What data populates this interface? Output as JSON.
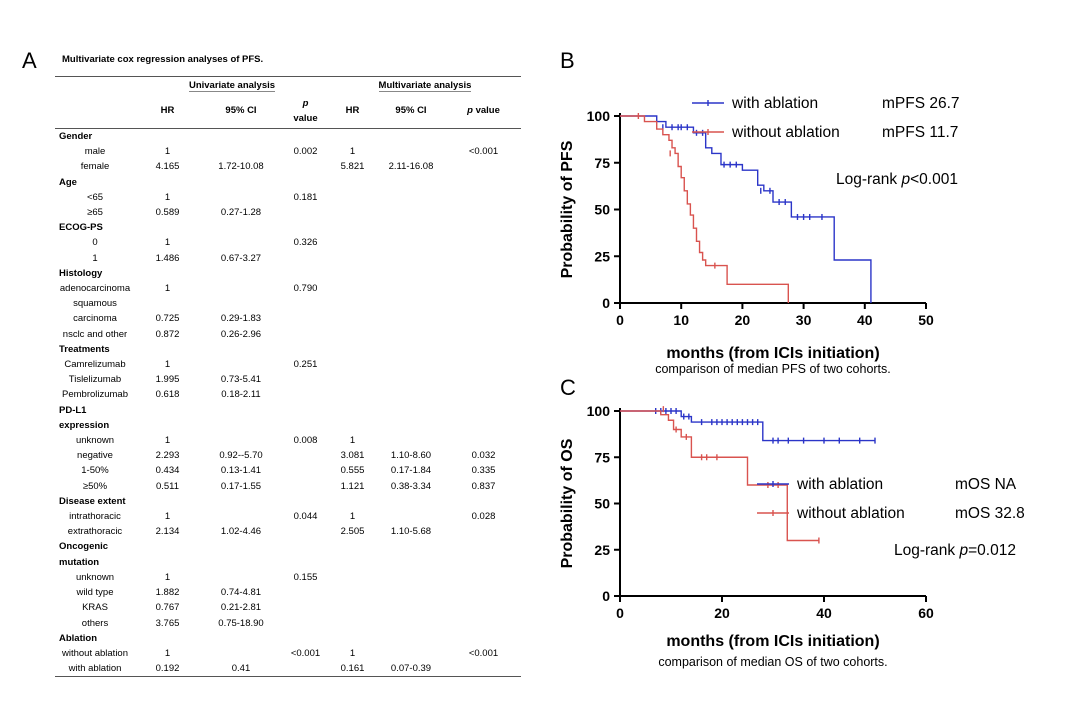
{
  "panel_labels": {
    "a": "A",
    "b": "B",
    "c": "C"
  },
  "table": {
    "title": "Multivariate cox regression analyses of PFS.",
    "group_headers": {
      "univariate": "Univariate analysis",
      "multivariate": "Multivariate analysis"
    },
    "columns": [
      "HR",
      "95% CI",
      "p value",
      "HR",
      "95% CI",
      "p value"
    ],
    "rows": [
      {
        "label": "Gender",
        "section": true
      },
      {
        "label": "male",
        "cells": [
          "1",
          "",
          "0.002",
          "1",
          "",
          "<0.001"
        ]
      },
      {
        "label": "female",
        "cells": [
          "4.165",
          "1.72-10.08",
          "",
          "5.821",
          "2.11-16.08",
          ""
        ]
      },
      {
        "label": "Age",
        "section": true
      },
      {
        "label": "<65",
        "cells": [
          "1",
          "",
          "0.181",
          "",
          "",
          ""
        ]
      },
      {
        "label": "≥65",
        "cells": [
          "0.589",
          "0.27-1.28",
          "",
          "",
          "",
          ""
        ]
      },
      {
        "label": "ECOG-PS",
        "section": true
      },
      {
        "label": "0",
        "cells": [
          "1",
          "",
          "0.326",
          "",
          "",
          ""
        ]
      },
      {
        "label": "1",
        "cells": [
          "1.486",
          "0.67-3.27",
          "",
          "",
          "",
          ""
        ]
      },
      {
        "label": "Histology",
        "section": true
      },
      {
        "label": "adenocarcinoma",
        "cells": [
          "1",
          "",
          "0.790",
          "",
          "",
          ""
        ]
      },
      {
        "label": "squamous",
        "cells": [
          "",
          "",
          "",
          "",
          "",
          ""
        ]
      },
      {
        "label": "carcinoma",
        "cells": [
          "0.725",
          "0.29-1.83",
          "",
          "",
          "",
          ""
        ]
      },
      {
        "label": "nsclc and other",
        "cells": [
          "0.872",
          "0.26-2.96",
          "",
          "",
          "",
          ""
        ]
      },
      {
        "label": "Treatments",
        "section": true
      },
      {
        "label": "Camrelizumab",
        "cells": [
          "1",
          "",
          "0.251",
          "",
          "",
          ""
        ]
      },
      {
        "label": "Tislelizumab",
        "cells": [
          "1.995",
          "0.73-5.41",
          "",
          "",
          "",
          ""
        ]
      },
      {
        "label": "Pembrolizumab",
        "cells": [
          "0.618",
          "0.18-2.11",
          "",
          "",
          "",
          ""
        ]
      },
      {
        "label": "PD-L1",
        "section": true
      },
      {
        "label": "expression",
        "section": true
      },
      {
        "label": "unknown",
        "cells": [
          "1",
          "",
          "0.008",
          "1",
          "",
          ""
        ]
      },
      {
        "label": "negative",
        "cells": [
          "2.293",
          "0.92--5.70",
          "",
          "3.081",
          "1.10-8.60",
          "0.032"
        ]
      },
      {
        "label": "1-50%",
        "cells": [
          "0.434",
          "0.13-1.41",
          "",
          "0.555",
          "0.17-1.84",
          "0.335"
        ]
      },
      {
        "label": "≥50%",
        "cells": [
          "0.511",
          "0.17-1.55",
          "",
          "1.121",
          "0.38-3.34",
          "0.837"
        ]
      },
      {
        "label": "Disease extent",
        "section": true
      },
      {
        "label": "intrathoracic",
        "cells": [
          "1",
          "",
          "0.044",
          "1",
          "",
          "0.028"
        ]
      },
      {
        "label": "extrathoracic",
        "cells": [
          "2.134",
          "1.02-4.46",
          "",
          "2.505",
          "1.10-5.68",
          ""
        ]
      },
      {
        "label": "Oncogenic",
        "section": true
      },
      {
        "label": "mutation",
        "section": true
      },
      {
        "label": "unknown",
        "cells": [
          "1",
          "",
          "0.155",
          "",
          "",
          ""
        ]
      },
      {
        "label": "wild type",
        "cells": [
          "1.882",
          "0.74-4.81",
          "",
          "",
          "",
          ""
        ]
      },
      {
        "label": "KRAS",
        "cells": [
          "0.767",
          "0.21-2.81",
          "",
          "",
          "",
          ""
        ]
      },
      {
        "label": "others",
        "cells": [
          "3.765",
          "0.75-18.90",
          "",
          "",
          "",
          ""
        ]
      },
      {
        "label": "Ablation",
        "section": true
      },
      {
        "label": "without ablation",
        "cells": [
          "1",
          "",
          "<0.001",
          "1",
          "",
          "<0.001"
        ]
      },
      {
        "label": "with ablation",
        "cells": [
          "0.192",
          "0.41",
          "",
          "0.161",
          "0.07-0.39",
          ""
        ]
      }
    ]
  },
  "chart_data": [
    {
      "type": "line",
      "panel": "B",
      "title": "",
      "ylabel": "Probability of PFS",
      "xlabel": "months (from ICIs initiation)",
      "caption": "comparison of median PFS of two cohorts.",
      "xlim": [
        0,
        50
      ],
      "ylim": [
        0,
        100
      ],
      "xticks": [
        0,
        10,
        20,
        30,
        40,
        50
      ],
      "yticks": [
        0,
        25,
        50,
        75,
        100
      ],
      "legend": [
        {
          "name": "with ablation",
          "stat": "mPFS 26.7",
          "color": "#2b35c8"
        },
        {
          "name": "without ablation",
          "stat": "mPFS 11.7",
          "color": "#d9534f"
        }
      ],
      "annotation": {
        "prefix": "Log-rank ",
        "p": "p",
        "rest": "<0.001"
      },
      "series": [
        {
          "name": "with ablation",
          "color": "#2b35c8",
          "steps": [
            [
              0,
              100
            ],
            [
              6,
              97
            ],
            [
              7.5,
              94
            ],
            [
              12,
              91
            ],
            [
              14,
              83
            ],
            [
              15,
              80
            ],
            [
              16.5,
              74
            ],
            [
              20,
              71
            ],
            [
              22.5,
              63
            ],
            [
              23.5,
              60
            ],
            [
              25,
              54
            ],
            [
              28,
              46
            ],
            [
              35,
              23
            ],
            [
              41,
              0
            ]
          ],
          "censored": [
            [
              7,
              94
            ],
            [
              8.5,
              94
            ],
            [
              9.5,
              94
            ],
            [
              10,
              94
            ],
            [
              11,
              94
            ],
            [
              12.5,
              91
            ],
            [
              13.5,
              91
            ],
            [
              17,
              74
            ],
            [
              18,
              74
            ],
            [
              19,
              74
            ],
            [
              23,
              60
            ],
            [
              24.5,
              60
            ],
            [
              26,
              54
            ],
            [
              27,
              54
            ],
            [
              29,
              46
            ],
            [
              30,
              46
            ],
            [
              31,
              46
            ],
            [
              33,
              46
            ]
          ]
        },
        {
          "name": "without ablation",
          "color": "#d9534f",
          "steps": [
            [
              0,
              100
            ],
            [
              4,
              97
            ],
            [
              6,
              93
            ],
            [
              7,
              90
            ],
            [
              8,
              87
            ],
            [
              8.5,
              83
            ],
            [
              9,
              80
            ],
            [
              9.5,
              73
            ],
            [
              10,
              67
            ],
            [
              10.5,
              60
            ],
            [
              11,
              53
            ],
            [
              11.5,
              47
            ],
            [
              12,
              40
            ],
            [
              12.5,
              33
            ],
            [
              13,
              27
            ],
            [
              13.5,
              23
            ],
            [
              14,
              20
            ],
            [
              17.5,
              10
            ],
            [
              27.5,
              0
            ]
          ],
          "censored": [
            [
              3,
              100
            ],
            [
              8.2,
              80
            ],
            [
              15.5,
              20
            ]
          ]
        }
      ]
    },
    {
      "type": "line",
      "panel": "C",
      "title": "",
      "ylabel": "Probability of OS",
      "xlabel": "months (from ICIs initiation)",
      "caption": "comparison of median OS of two cohorts.",
      "xlim": [
        0,
        60
      ],
      "ylim": [
        0,
        100
      ],
      "xticks": [
        0,
        20,
        40,
        60
      ],
      "yticks": [
        0,
        25,
        50,
        75,
        100
      ],
      "legend": [
        {
          "name": "with ablation",
          "stat": "mOS NA",
          "color": "#2b35c8"
        },
        {
          "name": "without ablation",
          "stat": "mOS 32.8",
          "color": "#d9534f"
        }
      ],
      "annotation": {
        "prefix": "Log-rank ",
        "p": "p",
        "rest": "=0.012"
      },
      "series": [
        {
          "name": "with ablation",
          "color": "#2b35c8",
          "steps": [
            [
              0,
              100
            ],
            [
              12,
              97
            ],
            [
              14,
              94
            ],
            [
              28,
              84
            ],
            [
              50,
              84
            ]
          ],
          "censored": [
            [
              7,
              100
            ],
            [
              8,
              100
            ],
            [
              9,
              100
            ],
            [
              10,
              100
            ],
            [
              11,
              100
            ],
            [
              12.5,
              97
            ],
            [
              13.5,
              97
            ],
            [
              16,
              94
            ],
            [
              18,
              94
            ],
            [
              19,
              94
            ],
            [
              20,
              94
            ],
            [
              21,
              94
            ],
            [
              22,
              94
            ],
            [
              23,
              94
            ],
            [
              24,
              94
            ],
            [
              25,
              94
            ],
            [
              26,
              94
            ],
            [
              27,
              94
            ],
            [
              30,
              84
            ],
            [
              31,
              84
            ],
            [
              33,
              84
            ],
            [
              36,
              84
            ],
            [
              40,
              84
            ],
            [
              43,
              84
            ],
            [
              47,
              84
            ],
            [
              50,
              84
            ]
          ]
        },
        {
          "name": "without ablation",
          "color": "#d9534f",
          "steps": [
            [
              0,
              100
            ],
            [
              8,
              98
            ],
            [
              9.5,
              95
            ],
            [
              10.5,
              90
            ],
            [
              12,
              86
            ],
            [
              14,
              75
            ],
            [
              25,
              60
            ],
            [
              32.8,
              30
            ],
            [
              39,
              30
            ]
          ],
          "censored": [
            [
              8.5,
              101
            ],
            [
              11,
              90
            ],
            [
              13,
              86
            ],
            [
              16,
              75
            ],
            [
              17,
              75
            ],
            [
              19,
              75
            ],
            [
              29,
              60
            ],
            [
              31,
              60
            ],
            [
              39,
              30
            ]
          ]
        }
      ]
    }
  ]
}
